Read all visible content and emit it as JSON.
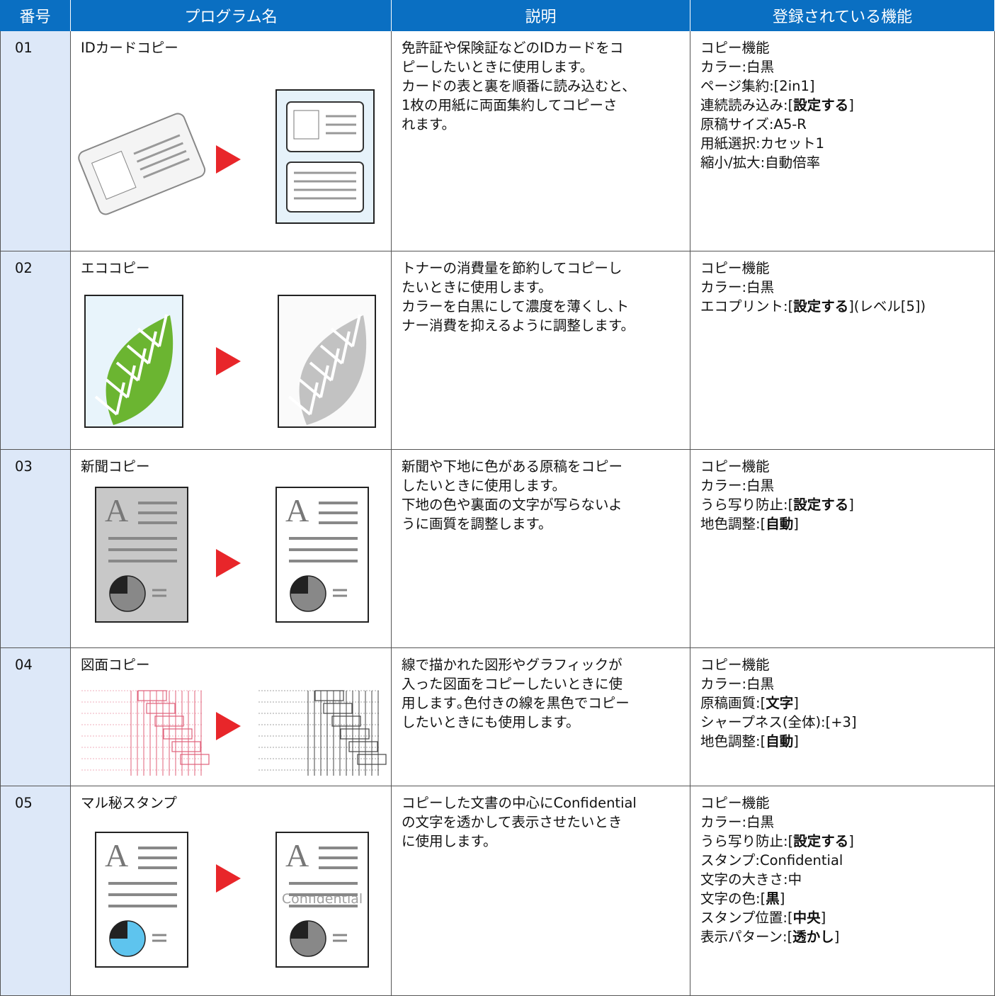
{
  "table": {
    "header": [
      "番号",
      "プログラム名",
      "説明",
      "登録されている機能"
    ],
    "rows": [
      {
        "number": "01",
        "name": "IDカードコピー",
        "description": [
          "免許証や保険証などのIDカードをコ",
          "ピーしたいときに使用します。",
          "カードの表と裏を順番に読み込むと、",
          "1枚の用紙に両面集約してコピーさ",
          "れます。"
        ],
        "features": [
          [
            "コピー機能"
          ],
          [
            "カラー:白黒"
          ],
          [
            "ページ集約:[2in1]"
          ],
          [
            "連続読み込み:[",
            {
              "b": "設定する"
            },
            "]"
          ],
          [
            "原稿サイズ:A5-R"
          ],
          [
            "用紙選択:カセット1"
          ],
          [
            "縮小/拡大:自動倍率"
          ]
        ]
      },
      {
        "number": "02",
        "name": "エココピー",
        "description": [
          "トナーの消費量を節約してコピーし",
          "たいときに使用します。",
          "カラーを白黒にして濃度を薄くし､ト",
          "ナー消費を抑えるように調整します。"
        ],
        "features": [
          [
            "コピー機能"
          ],
          [
            "カラー:白黒"
          ],
          [
            "エコプリント:[",
            {
              "b": "設定する"
            },
            "](レベル[5])"
          ]
        ]
      },
      {
        "number": "03",
        "name": "新聞コピー",
        "description": [
          "新聞や下地に色がある原稿をコピー",
          "したいときに使用します。",
          "下地の色や裏面の文字が写らないよ",
          "うに画質を調整します。"
        ],
        "features": [
          [
            "コピー機能"
          ],
          [
            "カラー:白黒"
          ],
          [
            "うら写り防止:[",
            {
              "b": "設定する"
            },
            "]"
          ],
          [
            "地色調整:[",
            {
              "b": "自動"
            },
            "]"
          ]
        ]
      },
      {
        "number": "04",
        "name": "図面コピー",
        "description": [
          "線で描かれた図形やグラフィックが",
          "入った図面をコピーしたいときに使",
          "用します｡色付きの線を黒色でコピー",
          "したいときにも使用します。"
        ],
        "features": [
          [
            "コピー機能"
          ],
          [
            "カラー:白黒"
          ],
          [
            "原稿画質:[",
            {
              "b": "文字"
            },
            "]"
          ],
          [
            "シャープネス(全体):[+3]"
          ],
          [
            "地色調整:[",
            {
              "b": "自動"
            },
            "]"
          ]
        ]
      },
      {
        "number": "05",
        "name": "マル秘スタンプ",
        "description": [
          "コピーした文書の中心にConfidential",
          "の文字を透かして表示させたいとき",
          "に使用します。"
        ],
        "features": [
          [
            "コピー機能"
          ],
          [
            "カラー:白黒"
          ],
          [
            "うら写り防止:[",
            {
              "b": "設定する"
            },
            "]"
          ],
          [
            "スタンプ:Confidential"
          ],
          [
            "文字の大きさ:中"
          ],
          [
            "文字の色:[",
            {
              "b": "黒"
            },
            "]"
          ],
          [
            "スタンプ位置:[",
            {
              "b": "中央"
            },
            "]"
          ],
          [
            "表示パターン:[",
            {
              "b": "透かし"
            },
            "]"
          ]
        ]
      }
    ],
    "illustration_texts": {
      "stamp": "Confidential"
    }
  }
}
